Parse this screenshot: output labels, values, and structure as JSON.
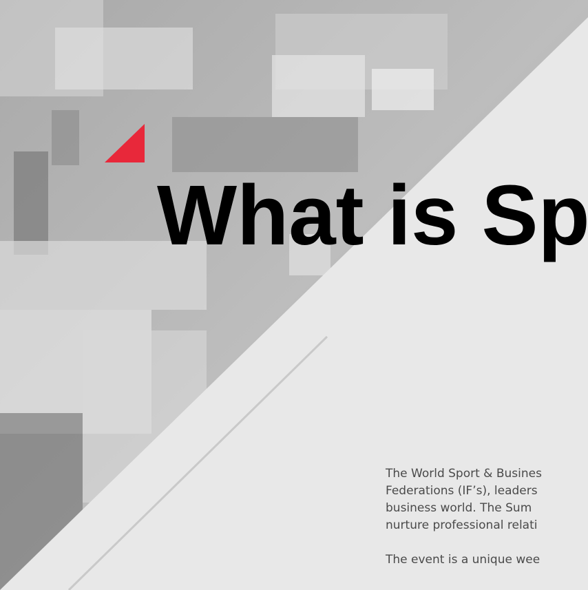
{
  "heading": "What is Sp",
  "paragraphs": [
    {
      "lines": [
        "The World Sport & Busines",
        "Federations (IF’s), leaders",
        "business world.  The Sum",
        "nurture professional relati"
      ]
    },
    {
      "lines": [
        "The event is a unique wee"
      ]
    }
  ]
}
